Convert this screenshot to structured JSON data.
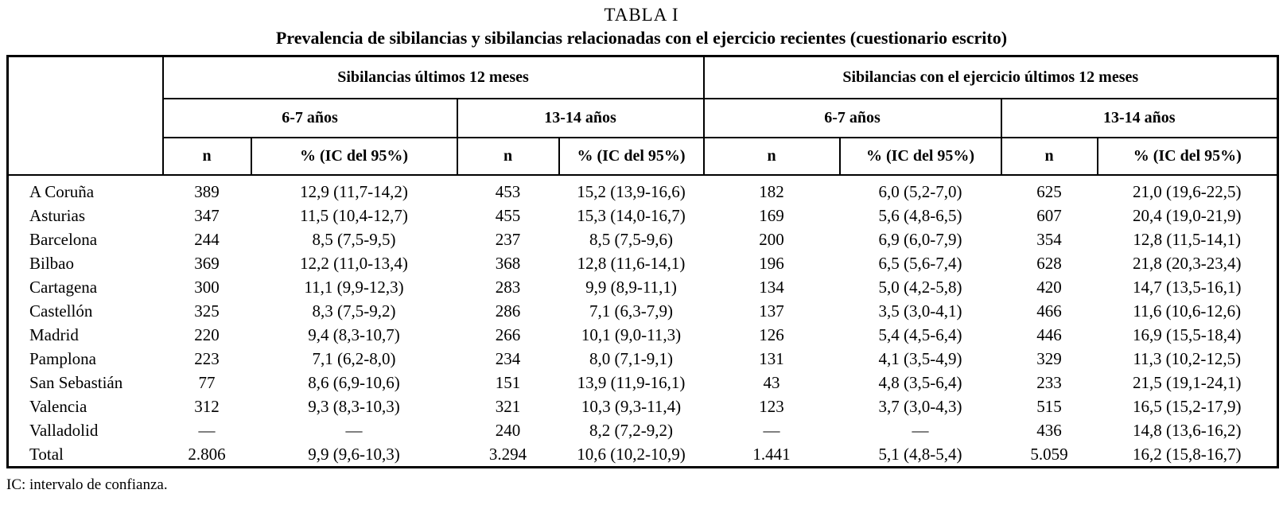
{
  "page": {
    "title": "TABLA I",
    "subtitle": "Prevalencia de sibilancias y sibilancias relacionadas con el ejercicio recientes (cuestionario escrito)",
    "footnote": "IC: intervalo de confianza."
  },
  "table": {
    "group_headers": [
      "Sibilancias últimos 12 meses",
      "Sibilancias con el ejercicio últimos 12 meses"
    ],
    "age_headers": [
      "6-7 años",
      "13-14 años",
      "6-7 años",
      "13-14 años"
    ],
    "col_headers": [
      "n",
      "% (IC del 95%)",
      "n",
      "% (IC del 95%)",
      "n",
      "% (IC del 95%)",
      "n",
      "% (IC del 95%)"
    ],
    "rows": [
      {
        "label": "A Coruña",
        "cells": [
          "389",
          "12,9 (11,7-14,2)",
          "453",
          "15,2 (13,9-16,6)",
          "182",
          "6,0 (5,2-7,0)",
          "625",
          "21,0 (19,6-22,5)"
        ]
      },
      {
        "label": "Asturias",
        "cells": [
          "347",
          "11,5 (10,4-12,7)",
          "455",
          "15,3 (14,0-16,7)",
          "169",
          "5,6 (4,8-6,5)",
          "607",
          "20,4 (19,0-21,9)"
        ]
      },
      {
        "label": "Barcelona",
        "cells": [
          "244",
          "8,5 (7,5-9,5)",
          "237",
          "8,5 (7,5-9,6)",
          "200",
          "6,9 (6,0-7,9)",
          "354",
          "12,8 (11,5-14,1)"
        ]
      },
      {
        "label": "Bilbao",
        "cells": [
          "369",
          "12,2 (11,0-13,4)",
          "368",
          "12,8 (11,6-14,1)",
          "196",
          "6,5 (5,6-7,4)",
          "628",
          "21,8 (20,3-23,4)"
        ]
      },
      {
        "label": "Cartagena",
        "cells": [
          "300",
          "11,1 (9,9-12,3)",
          "283",
          "9,9 (8,9-11,1)",
          "134",
          "5,0 (4,2-5,8)",
          "420",
          "14,7 (13,5-16,1)"
        ]
      },
      {
        "label": "Castellón",
        "cells": [
          "325",
          "8,3 (7,5-9,2)",
          "286",
          "7,1 (6,3-7,9)",
          "137",
          "3,5 (3,0-4,1)",
          "466",
          "11,6 (10,6-12,6)"
        ]
      },
      {
        "label": "Madrid",
        "cells": [
          "220",
          "9,4 (8,3-10,7)",
          "266",
          "10,1 (9,0-11,3)",
          "126",
          "5,4 (4,5-6,4)",
          "446",
          "16,9 (15,5-18,4)"
        ]
      },
      {
        "label": "Pamplona",
        "cells": [
          "223",
          "7,1 (6,2-8,0)",
          "234",
          "8,0 (7,1-9,1)",
          "131",
          "4,1 (3,5-4,9)",
          "329",
          "11,3 (10,2-12,5)"
        ]
      },
      {
        "label": "San Sebastián",
        "cells": [
          "77",
          "8,6 (6,9-10,6)",
          "151",
          "13,9 (11,9-16,1)",
          "43",
          "4,8 (3,5-6,4)",
          "233",
          "21,5 (19,1-24,1)"
        ]
      },
      {
        "label": "Valencia",
        "cells": [
          "312",
          "9,3 (8,3-10,3)",
          "321",
          "10,3 (9,3-11,4)",
          "123",
          "3,7 (3,0-4,3)",
          "515",
          "16,5 (15,2-17,9)"
        ]
      },
      {
        "label": "Valladolid",
        "cells": [
          "—",
          "—",
          "240",
          "8,2 (7,2-9,2)",
          "—",
          "—",
          "436",
          "14,8 (13,6-16,2)"
        ]
      },
      {
        "label": "Total",
        "cells": [
          "2.806",
          "9,9 (9,6-10,3)",
          "3.294",
          "10,6 (10,2-10,9)",
          "1.441",
          "5,1 (4,8-5,4)",
          "5.059",
          "16,2 (15,8-16,7)"
        ]
      }
    ]
  }
}
